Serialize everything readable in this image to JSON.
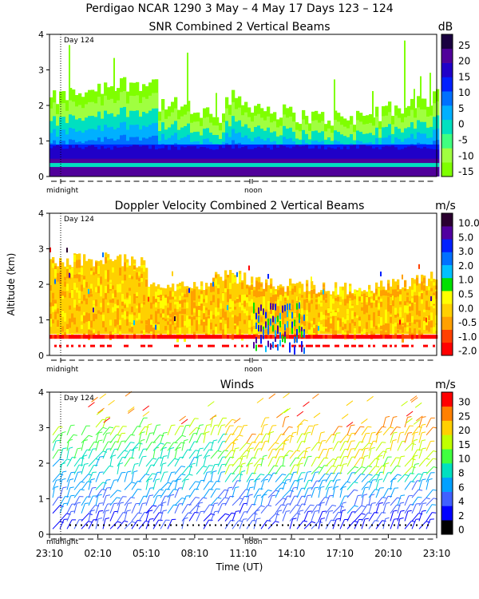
{
  "header": {
    "title": "Perdigao NCAR 1290    3 May –  4 May 17 Days 123 – 124"
  },
  "colors": {
    "snr": [
      "#7fff00",
      "#a0ff40",
      "#40ff80",
      "#00e0c0",
      "#00b0ff",
      "#0070ff",
      "#0020ff",
      "#2000c8",
      "#50009a",
      "#1a0040"
    ],
    "vel": [
      "#ff0000",
      "#ff4000",
      "#ffa000",
      "#ffd000",
      "#ffff00",
      "#00e000",
      "#00c0ff",
      "#0070ff",
      "#0020ff",
      "#5000a0",
      "#2a0030"
    ],
    "wind": [
      "#000000",
      "#0000ff",
      "#4060ff",
      "#00a0ff",
      "#00e0c0",
      "#40ff40",
      "#c0ff00",
      "#ffd000",
      "#ff8000",
      "#ff0000"
    ]
  },
  "chart_data": [
    {
      "type": "heatmap",
      "title": "SNR Combined 2 Vertical Beams",
      "ylabel": "",
      "unit": "dB",
      "ylim": [
        0,
        4
      ],
      "yticks": [
        "0",
        "1",
        "2",
        "3",
        "4"
      ],
      "colorbar_ticks": [
        "25",
        "20",
        "15",
        "10",
        "5",
        "0",
        "-5",
        "-10",
        "-15"
      ],
      "colorbar_range": [
        -15,
        30
      ],
      "annotation": "Day 124",
      "markers": [
        "midnight",
        "noon"
      ],
      "profile_altitudes_km": [
        0.2,
        0.5,
        0.8,
        1.2,
        1.6,
        2.0,
        2.6,
        3.2
      ],
      "profile_snr_db": [
        20,
        15,
        8,
        3,
        -2,
        -8,
        -12,
        -15
      ]
    },
    {
      "type": "heatmap",
      "title": "Doppler Velocity Combined 2 Vertical Beams",
      "ylabel": "Altitude (km)",
      "unit": "m/s",
      "ylim": [
        0,
        4
      ],
      "yticks": [
        "0",
        "1",
        "2",
        "3",
        "4"
      ],
      "colorbar_ticks": [
        "10.0",
        "5.0",
        "3.0",
        "2.0",
        "1.0",
        "0.5",
        "0.0",
        "-0.5",
        "-1.0",
        "-2.0"
      ],
      "annotation": "Day 124",
      "markers": [
        "midnight",
        "noon"
      ],
      "typical_velocity_ms": 0.0
    },
    {
      "type": "scatter",
      "title": "Winds",
      "unit": "m/s",
      "xlabel": "Time (UT)",
      "ylim": [
        0,
        4
      ],
      "yticks": [
        "0",
        "1",
        "2",
        "3",
        "4"
      ],
      "colorbar_ticks": [
        "30",
        "25",
        "20",
        "15",
        "10",
        "8",
        "6",
        "4",
        "2",
        "0"
      ],
      "x_tick_labels": [
        "23:10",
        "02:10",
        "05:10",
        "08:10",
        "11:10",
        "14:10",
        "17:10",
        "20:10",
        "23:10"
      ],
      "annotation": "Day 124",
      "markers": [
        "midnight",
        "noon"
      ],
      "profile_altitudes_km": [
        0.2,
        0.5,
        1.0,
        1.5,
        2.0,
        2.5,
        3.0,
        3.5,
        4.0
      ],
      "profile_speed_ms": [
        4,
        6,
        8,
        10,
        13,
        16,
        20,
        24,
        28
      ]
    }
  ]
}
